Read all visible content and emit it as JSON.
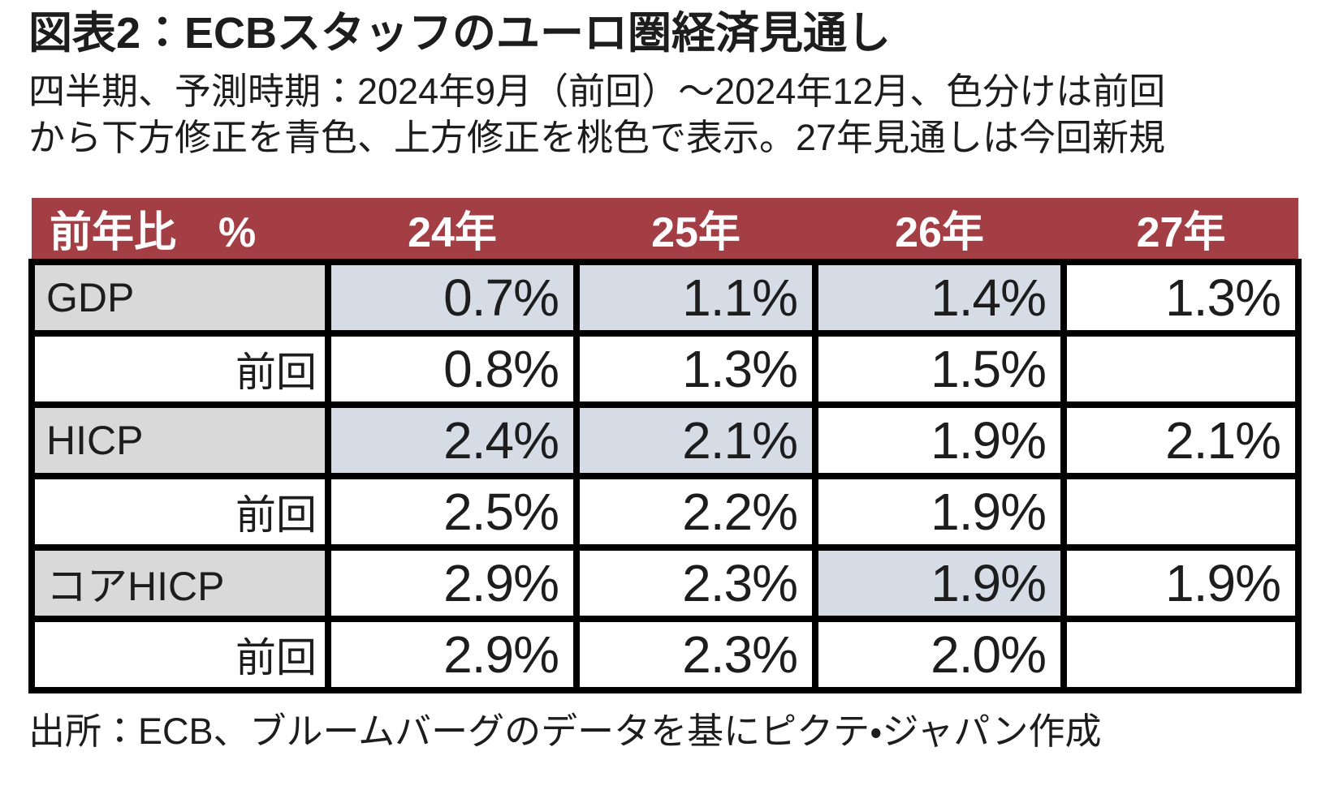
{
  "title": "図表2：ECBスタッフのユーロ圏経済見通し",
  "subtitle": {
    "line1": "四半期、予測時期：2024年9月（前回）～2024年12月、色分けは前回",
    "line2": "から下方修正を青色、上方修正を桃色で表示。27年見通しは今回新規"
  },
  "source": "出所：ECB、ブルームバーグのデータを基にピクテ・ジャパン作成",
  "colors": {
    "header_bg": "#A33E44",
    "header_text": "#FFFFFF",
    "label_bg": "#D9D9D9",
    "revision_down_bg": "#D6DCE5",
    "cell_bg": "#FFFFFF",
    "border": "#000000",
    "text": "#1D1D1D"
  },
  "table": {
    "unit_header": "前年比　%",
    "columns": [
      "24年",
      "25年",
      "26年",
      "27年"
    ],
    "rows": [
      {
        "label": "GDP",
        "type": "forecast",
        "values": [
          "0.7%",
          "1.1%",
          "1.4%",
          "1.3%"
        ],
        "hl": [
          "down",
          "down",
          "down",
          "none"
        ]
      },
      {
        "label": "前回",
        "type": "previous",
        "values": [
          "0.8%",
          "1.3%",
          "1.5%",
          ""
        ],
        "hl": [
          "none",
          "none",
          "none",
          "none"
        ]
      },
      {
        "label": "HICP",
        "type": "forecast",
        "values": [
          "2.4%",
          "2.1%",
          "1.9%",
          "2.1%"
        ],
        "hl": [
          "down",
          "down",
          "none",
          "none"
        ]
      },
      {
        "label": "前回",
        "type": "previous",
        "values": [
          "2.5%",
          "2.2%",
          "1.9%",
          ""
        ],
        "hl": [
          "none",
          "none",
          "none",
          "none"
        ]
      },
      {
        "label": "コアHICP",
        "type": "forecast",
        "values": [
          "2.9%",
          "2.3%",
          "1.9%",
          "1.9%"
        ],
        "hl": [
          "none",
          "none",
          "down",
          "none"
        ]
      },
      {
        "label": "前回",
        "type": "previous",
        "values": [
          "2.9%",
          "2.3%",
          "2.0%",
          ""
        ],
        "hl": [
          "none",
          "none",
          "none",
          "none"
        ]
      }
    ]
  },
  "chart_data": {
    "type": "table",
    "title": "図表2：ECBスタッフのユーロ圏経済見通し",
    "subtitle": "四半期、予測時期：2024年9月（前回）～2024年12月、色分けは前回から下方修正を青色、上方修正を桃色で表示。27年見通しは今回新規",
    "unit": "前年比 %",
    "columns": [
      "24年",
      "25年",
      "26年",
      "27年"
    ],
    "rows": [
      {
        "label": "GDP",
        "values": [
          0.7,
          1.1,
          1.4,
          1.3
        ],
        "revision": [
          "down",
          "down",
          "down",
          "new"
        ]
      },
      {
        "label": "GDP 前回",
        "values": [
          0.8,
          1.3,
          1.5,
          null
        ],
        "revision": [
          "none",
          "none",
          "none",
          "none"
        ]
      },
      {
        "label": "HICP",
        "values": [
          2.4,
          2.1,
          1.9,
          2.1
        ],
        "revision": [
          "down",
          "down",
          "none",
          "new"
        ]
      },
      {
        "label": "HICP 前回",
        "values": [
          2.5,
          2.2,
          1.9,
          null
        ],
        "revision": [
          "none",
          "none",
          "none",
          "none"
        ]
      },
      {
        "label": "コアHICP",
        "values": [
          2.9,
          2.3,
          1.9,
          1.9
        ],
        "revision": [
          "none",
          "none",
          "down",
          "new"
        ]
      },
      {
        "label": "コアHICP 前回",
        "values": [
          2.9,
          2.3,
          2.0,
          null
        ],
        "revision": [
          "none",
          "none",
          "none",
          "none"
        ]
      }
    ],
    "legend": {
      "blue_cells": "前回から下方修正（青色）",
      "pink_cells": "上方修正（桃色）",
      "col_27": "27年見通しは今回新規"
    },
    "source": "出所：ECB、ブルームバーグのデータを基にピクテ・ジャパン作成"
  }
}
